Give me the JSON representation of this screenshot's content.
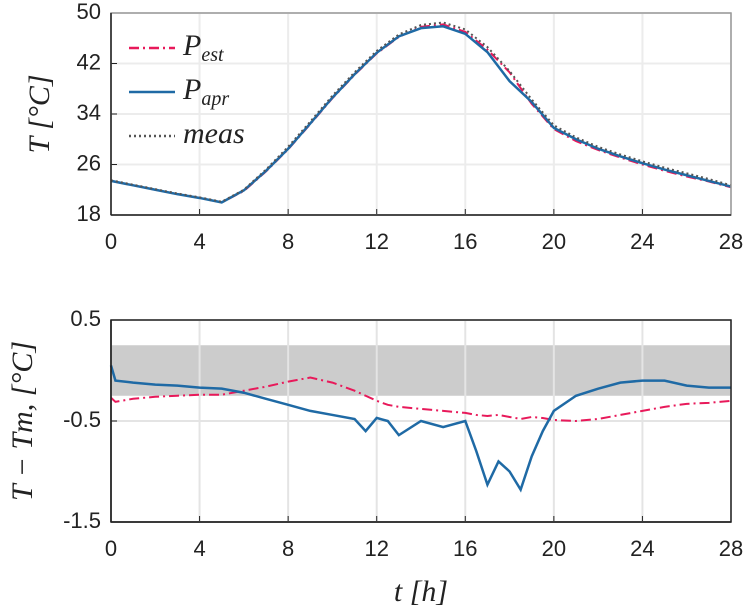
{
  "chart_data": [
    {
      "type": "line",
      "ylabel": "T [°C]",
      "grid": true,
      "legend": "upper left",
      "x": [
        0,
        1,
        2,
        3,
        4,
        5,
        6,
        7,
        8,
        9,
        10,
        11,
        12,
        13,
        14,
        15,
        16,
        17,
        18,
        19,
        20,
        21,
        22,
        23,
        24,
        25,
        26,
        27,
        28
      ],
      "xlim": [
        0,
        28
      ],
      "xticks": [
        0,
        4,
        8,
        12,
        16,
        20,
        24,
        28
      ],
      "ylim": [
        18,
        50
      ],
      "yticks": [
        18,
        26,
        34,
        42,
        50
      ],
      "series": [
        {
          "name": "Pest",
          "color": "#e8195a",
          "style": "dashdot",
          "values": [
            23.4,
            22.7,
            22.0,
            21.3,
            20.7,
            20.0,
            21.8,
            24.9,
            28.4,
            32.4,
            36.5,
            40.2,
            43.6,
            46.2,
            47.8,
            48.2,
            47.0,
            44.2,
            40.6,
            35.6,
            31.6,
            29.7,
            28.3,
            27.1,
            26.0,
            25.0,
            24.1,
            23.3,
            22.4
          ]
        },
        {
          "name": "Papr",
          "color": "#1f6aa5",
          "style": "solid",
          "values": [
            23.4,
            22.7,
            22.0,
            21.3,
            20.7,
            20.0,
            21.9,
            25.0,
            28.5,
            32.5,
            36.6,
            40.3,
            43.7,
            46.3,
            47.6,
            47.9,
            46.7,
            43.8,
            39.2,
            35.9,
            31.8,
            30.0,
            28.5,
            27.3,
            26.2,
            25.2,
            24.3,
            23.4,
            22.5
          ]
        },
        {
          "name": "meas",
          "color": "#555555",
          "style": "dotted",
          "values": [
            23.5,
            22.8,
            22.1,
            21.4,
            20.8,
            20.1,
            22.0,
            25.2,
            28.8,
            32.8,
            36.9,
            40.6,
            44.0,
            46.6,
            48.1,
            48.5,
            47.4,
            44.6,
            40.8,
            36.3,
            32.2,
            30.3,
            28.8,
            27.6,
            26.5,
            25.5,
            24.6,
            23.7,
            22.7
          ]
        }
      ]
    },
    {
      "type": "line",
      "ylabel": "T − Tm, [°C]",
      "xlabel": "t [h]",
      "grid": true,
      "band": [
        -0.25,
        0.25
      ],
      "band_color": "#cccccc",
      "x": [
        0,
        0.2,
        1,
        2,
        3,
        4,
        5,
        6,
        7,
        8,
        9,
        10,
        11,
        11.5,
        12,
        12.5,
        13,
        14,
        15,
        16,
        16.5,
        17,
        17.5,
        18,
        18.5,
        19,
        19.5,
        20,
        21,
        22,
        23,
        24,
        25,
        26,
        27,
        28
      ],
      "xlim": [
        0,
        28
      ],
      "xticks": [
        0,
        4,
        8,
        12,
        16,
        20,
        24,
        28
      ],
      "ylim": [
        -1.5,
        0.5
      ],
      "yticks": [
        -1.5,
        -0.5,
        0.5
      ],
      "series": [
        {
          "name": "Pest",
          "color": "#e8195a",
          "style": "dashdot",
          "values": [
            -0.27,
            -0.31,
            -0.28,
            -0.26,
            -0.25,
            -0.24,
            -0.24,
            -0.2,
            -0.16,
            -0.11,
            -0.07,
            -0.12,
            -0.2,
            -0.25,
            -0.3,
            -0.34,
            -0.36,
            -0.38,
            -0.4,
            -0.42,
            -0.44,
            -0.45,
            -0.44,
            -0.46,
            -0.48,
            -0.46,
            -0.47,
            -0.49,
            -0.5,
            -0.48,
            -0.44,
            -0.4,
            -0.36,
            -0.33,
            -0.32,
            -0.3
          ]
        },
        {
          "name": "Papr",
          "color": "#1f6aa5",
          "style": "solid",
          "values": [
            0.05,
            -0.1,
            -0.12,
            -0.14,
            -0.15,
            -0.17,
            -0.18,
            -0.22,
            -0.28,
            -0.34,
            -0.4,
            -0.44,
            -0.48,
            -0.6,
            -0.47,
            -0.5,
            -0.64,
            -0.5,
            -0.56,
            -0.5,
            -0.8,
            -1.13,
            -0.9,
            -1.0,
            -1.18,
            -0.85,
            -0.6,
            -0.4,
            -0.25,
            -0.18,
            -0.12,
            -0.1,
            -0.1,
            -0.15,
            -0.17,
            -0.17
          ]
        }
      ]
    }
  ]
}
